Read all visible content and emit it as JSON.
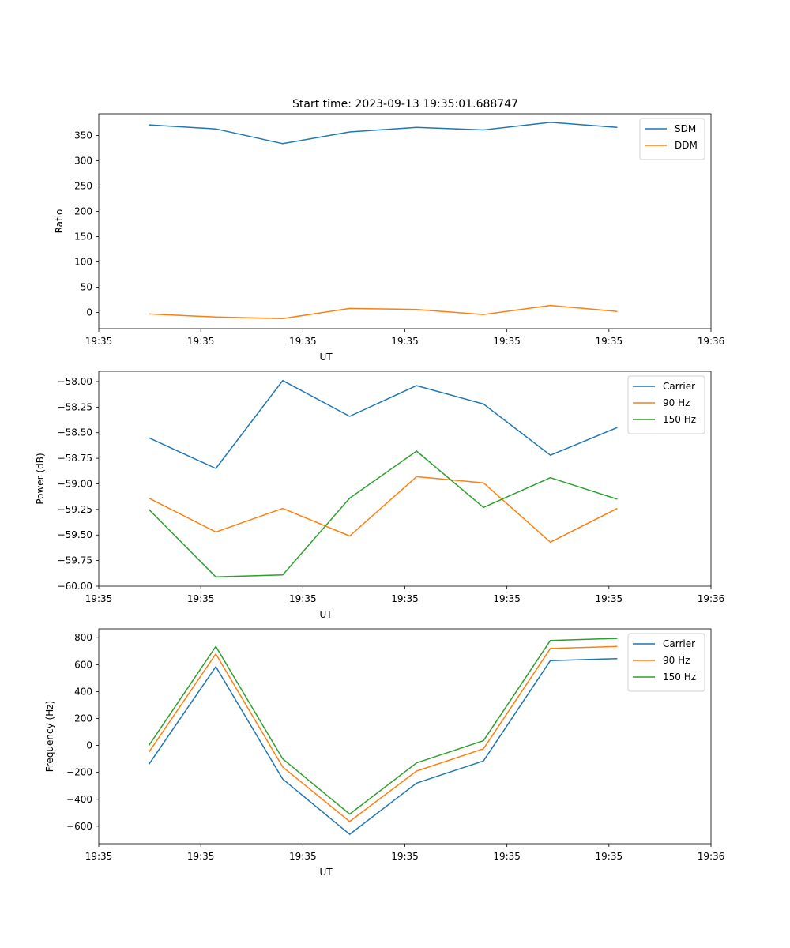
{
  "figure_title": "Start time: 2023-09-13 19:35:01.688747",
  "colors": {
    "c0": "#1f77b4",
    "c1": "#ff7f0e",
    "c2": "#2ca02c"
  },
  "chart_data": [
    {
      "type": "line",
      "title": "Start time: 2023-09-13 19:35:01.688747",
      "xlabel": "UT",
      "ylabel": "Ratio",
      "x": [
        1,
        2,
        3,
        4,
        5,
        6,
        7,
        8
      ],
      "xlim": [
        0.25,
        9.4
      ],
      "ylim": [
        -32,
        393
      ],
      "xtick_positions": [
        0.25,
        1.775,
        3.3,
        4.825,
        6.35,
        7.875,
        9.4
      ],
      "xtick_labels": [
        "19:35",
        "19:35",
        "19:35",
        "19:35",
        "19:35",
        "19:35",
        "19:36"
      ],
      "yticks": [
        0,
        50,
        100,
        150,
        200,
        250,
        300,
        350
      ],
      "ytick_labels": [
        "0",
        "50",
        "100",
        "150",
        "200",
        "250",
        "300",
        "350"
      ],
      "legend_position": "top-right",
      "series": [
        {
          "name": "SDM",
          "color": "#1f77b4",
          "values": [
            371,
            363,
            334,
            357,
            366,
            361,
            376,
            366
          ]
        },
        {
          "name": "DDM",
          "color": "#ff7f0e",
          "values": [
            -3,
            -9,
            -12,
            8,
            6,
            -4,
            14,
            2
          ]
        }
      ]
    },
    {
      "type": "line",
      "title": "",
      "xlabel": "UT",
      "ylabel": "Power (dB)",
      "x": [
        1,
        2,
        3,
        4,
        5,
        6,
        7,
        8
      ],
      "xlim": [
        0.25,
        9.4
      ],
      "ylim": [
        -60.0,
        -57.9
      ],
      "xtick_positions": [
        0.25,
        1.775,
        3.3,
        4.825,
        6.35,
        7.875,
        9.4
      ],
      "xtick_labels": [
        "19:35",
        "19:35",
        "19:35",
        "19:35",
        "19:35",
        "19:35",
        "19:36"
      ],
      "yticks": [
        -60.0,
        -59.75,
        -59.5,
        -59.25,
        -59.0,
        -58.75,
        -58.5,
        -58.25,
        -58.0
      ],
      "ytick_labels": [
        "−60.00",
        "−59.75",
        "−59.50",
        "−59.25",
        "−59.00",
        "−58.75",
        "−58.50",
        "−58.25",
        "−58.00"
      ],
      "legend_position": "top-right",
      "series": [
        {
          "name": "Carrier",
          "color": "#1f77b4",
          "values": [
            -58.55,
            -58.85,
            -57.99,
            -58.34,
            -58.04,
            -58.22,
            -58.72,
            -58.45
          ]
        },
        {
          "name": "90 Hz",
          "color": "#ff7f0e",
          "values": [
            -59.14,
            -59.47,
            -59.24,
            -59.51,
            -58.93,
            -58.99,
            -59.57,
            -59.24
          ]
        },
        {
          "name": "150 Hz",
          "color": "#2ca02c",
          "values": [
            -59.25,
            -59.91,
            -59.89,
            -59.14,
            -58.68,
            -59.23,
            -58.94,
            -59.15
          ]
        }
      ]
    },
    {
      "type": "line",
      "title": "",
      "xlabel": "UT",
      "ylabel": "Frequency (Hz)",
      "x": [
        1,
        2,
        3,
        4,
        5,
        6,
        7,
        8
      ],
      "xlim": [
        0.25,
        9.4
      ],
      "ylim": [
        -730,
        866
      ],
      "xtick_positions": [
        0.25,
        1.775,
        3.3,
        4.825,
        6.35,
        7.875,
        9.4
      ],
      "xtick_labels": [
        "19:35",
        "19:35",
        "19:35",
        "19:35",
        "19:35",
        "19:35",
        "19:36"
      ],
      "yticks": [
        -600,
        -400,
        -200,
        0,
        200,
        400,
        600,
        800
      ],
      "ytick_labels": [
        "−600",
        "−400",
        "−200",
        "0",
        "200",
        "400",
        "600",
        "800"
      ],
      "legend_position": "top-right",
      "series": [
        {
          "name": "Carrier",
          "color": "#1f77b4",
          "values": [
            -140,
            585,
            -250,
            -660,
            -280,
            -115,
            630,
            645
          ]
        },
        {
          "name": "90 Hz",
          "color": "#ff7f0e",
          "values": [
            -50,
            680,
            -160,
            -565,
            -190,
            -25,
            720,
            735
          ]
        },
        {
          "name": "150 Hz",
          "color": "#2ca02c",
          "values": [
            0,
            735,
            -100,
            -510,
            -130,
            35,
            780,
            795
          ]
        }
      ]
    }
  ]
}
